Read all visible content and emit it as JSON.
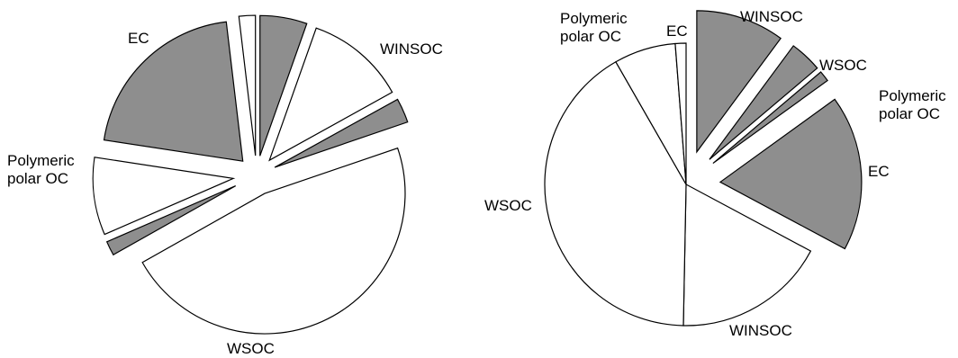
{
  "colors": {
    "shaded": "#8e8e8e",
    "plain": "#ffffff",
    "outline": "#000000"
  },
  "chart_data": [
    {
      "type": "pie",
      "title": "",
      "start_angle_deg": 0,
      "slices": [
        {
          "label": "WINSOC",
          "value": 11.5,
          "fill": "shaded"
        },
        {
          "label": "WINSOC",
          "value": 24.5,
          "fill": "plain"
        },
        {
          "label": "WSOC",
          "value": 6,
          "fill": "shaded"
        },
        {
          "label": "WSOC",
          "value": 100,
          "fill": "plain"
        },
        {
          "label": "Polymeric polar OC",
          "value": 3.5,
          "fill": "shaded"
        },
        {
          "label": "Polymeric polar OC",
          "value": 19,
          "fill": "plain"
        },
        {
          "label": "EC",
          "value": 44,
          "fill": "shaded"
        },
        {
          "label": "EC",
          "value": 4,
          "fill": "plain"
        }
      ],
      "labels": [
        {
          "text": "WINSOC",
          "slice": 0
        },
        {
          "text": "WSOC",
          "slice": 3
        },
        {
          "text": "Polymeric polar OC",
          "slice": 5
        },
        {
          "text": "EC",
          "slice": 6
        }
      ]
    },
    {
      "type": "pie",
      "title": "",
      "start_angle_deg": 0,
      "slices": [
        {
          "label": "WINSOC",
          "value": 33,
          "fill": "shaded"
        },
        {
          "label": "WSOC",
          "value": 12,
          "fill": "shaded"
        },
        {
          "label": "Polymeric polar OC",
          "value": 4,
          "fill": "shaded"
        },
        {
          "label": "EC",
          "value": 58,
          "fill": "shaded"
        },
        {
          "label": "WINSOC",
          "value": 57,
          "fill": "plain"
        },
        {
          "label": "WSOC",
          "value": 135,
          "fill": "plain"
        },
        {
          "label": "Polymeric polar OC",
          "value": 23,
          "fill": "plain"
        },
        {
          "label": "EC",
          "value": 4,
          "fill": "plain"
        }
      ],
      "labels": [
        {
          "text": "WINSOC",
          "slice": 0
        },
        {
          "text": "WSOC",
          "slice": 1
        },
        {
          "text": "Polymeric polar OC",
          "slice": 2
        },
        {
          "text": "EC",
          "slice": 3
        },
        {
          "text": "WINSOC",
          "slice": 4
        },
        {
          "text": "WSOC",
          "slice": 5
        },
        {
          "text": "Polymeric polar OC",
          "slice": 6
        },
        {
          "text": "EC",
          "slice": 7
        }
      ]
    }
  ]
}
